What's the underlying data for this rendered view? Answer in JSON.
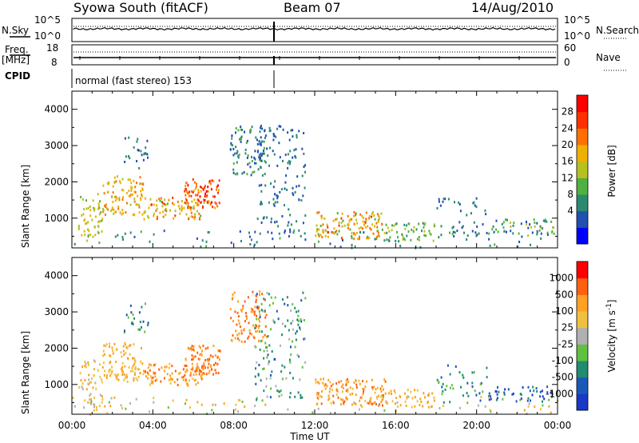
{
  "header": {
    "station": "Syowa South (fitACF)",
    "beam": "Beam 07",
    "date": "14/Aug/2010"
  },
  "params": {
    "nsky_label": "N.Sky",
    "nsearch_label": "N.Search",
    "freq_label": "Freq.",
    "freq_unit": "[MHz]",
    "nave_label": "Nave",
    "cpid_label": "CPID",
    "cpid_value": "normal (fast stereo) 153",
    "nsky_ticks": [
      "10^5",
      "10^0"
    ],
    "freq_ticks": [
      "18",
      "8"
    ],
    "nave_ticks": [
      "60",
      "0"
    ]
  },
  "chart_data": [
    {
      "type": "heatmap",
      "title": "",
      "quantity": "Power [dB]",
      "ylabel": "Slant Range [km]",
      "xlabel": "",
      "xlim": [
        "00:00",
        "24:00"
      ],
      "ylim": [
        180,
        4500
      ],
      "y_ticks": [
        "4000",
        "3000",
        "2000",
        "1000"
      ],
      "colorbar": {
        "label": "Power [dB]",
        "ticks": [
          "28",
          "24",
          "20",
          "16",
          "12",
          "8",
          "4"
        ],
        "colors": [
          "#0000ff",
          "#2050b0",
          "#2a8a70",
          "#50b040",
          "#b8c020",
          "#f0b000",
          "#ff7000",
          "#ff3000",
          "#ff0000"
        ]
      }
    },
    {
      "type": "heatmap",
      "title": "",
      "quantity": "Velocity [m s-1]",
      "ylabel": "Slant Range [km]",
      "xlabel": "Time UT",
      "xlim": [
        "00:00",
        "24:00"
      ],
      "ylim": [
        180,
        4500
      ],
      "y_ticks": [
        "4000",
        "3000",
        "2000",
        "1000"
      ],
      "x_ticks": [
        "00:00",
        "04:00",
        "08:00",
        "12:00",
        "16:00",
        "20:00",
        "00:00"
      ],
      "colorbar": {
        "label": "Velocity",
        "unit_prefix": "[m s",
        "unit_exp": "-1",
        "unit_suffix": "]",
        "ticks": [
          "1000",
          "500",
          "100",
          "25",
          "-25",
          "-100",
          "-500",
          "-1000"
        ],
        "colors": [
          "#1838c8",
          "#1a58b8",
          "#208c70",
          "#60c040",
          "#b0b0b0",
          "#f0c040",
          "#ffa020",
          "#ff6010",
          "#ff0000"
        ]
      }
    }
  ]
}
